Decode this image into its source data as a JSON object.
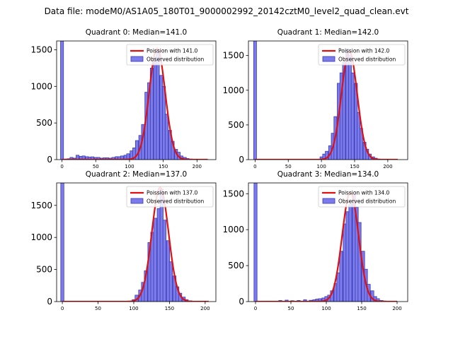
{
  "figure": {
    "suptitle": "Data file: modeM0/AS1A05_180T01_9000002992_20142cztM0_level2_quad_clean.evt",
    "colors": {
      "bar_fill": "#7b7bea",
      "bar_edge": "#3a3ab8",
      "curve": "#e01010"
    }
  },
  "chart_data": [
    {
      "type": "bar",
      "title": "Quadrant 0: Median=141.0",
      "xlim": [
        -8,
        228
      ],
      "ylim": [
        0,
        1620
      ],
      "xticks": [
        0,
        50,
        100,
        150,
        200
      ],
      "yticks": [
        0,
        500,
        1000,
        1500
      ],
      "bin_width": 4.4,
      "spike": {
        "x": 0,
        "value": 1620
      },
      "bins": {
        "centers": [
          6,
          10,
          14,
          19,
          23,
          28,
          32,
          37,
          41,
          45,
          50,
          54,
          59,
          63,
          67,
          72,
          76,
          81,
          85,
          89,
          94,
          98,
          103,
          107,
          111,
          116,
          120,
          125,
          129,
          133,
          138,
          142,
          147,
          151,
          155,
          160,
          164,
          169,
          173,
          177,
          182,
          186,
          191,
          195,
          199,
          204,
          208
        ],
        "values": [
          8,
          12,
          30,
          20,
          60,
          45,
          50,
          40,
          35,
          38,
          30,
          30,
          20,
          25,
          25,
          20,
          30,
          40,
          40,
          50,
          60,
          80,
          120,
          160,
          260,
          330,
          480,
          920,
          1050,
          1250,
          1400,
          1500,
          1150,
          1000,
          620,
          400,
          250,
          140,
          100,
          50,
          30,
          15,
          8,
          5,
          3,
          2,
          2
        ]
      },
      "curve": {
        "label": "Poission with 141.0",
        "mean": 141.0,
        "peak": 1520,
        "x_range": [
          0,
          216
        ]
      },
      "legend": [
        "Poission with 141.0",
        "Observed distribution"
      ],
      "legend_position": "top-right"
    },
    {
      "type": "bar",
      "title": "Quadrant 1: Median=142.0",
      "xlim": [
        -10,
        230
      ],
      "ylim": [
        0,
        1710
      ],
      "xticks": [
        0,
        50,
        100,
        150,
        200
      ],
      "yticks": [
        0,
        500,
        1000,
        1500
      ],
      "bin_width": 4.3,
      "spike": {
        "x": 0,
        "value": 1710
      },
      "bins": {
        "centers": [
          100,
          104,
          108,
          113,
          117,
          121,
          126,
          130,
          134,
          139,
          143,
          147,
          152,
          156,
          160,
          165,
          169,
          173,
          178,
          182,
          186,
          191
        ],
        "values": [
          40,
          80,
          120,
          200,
          380,
          620,
          1100,
          1250,
          1400,
          1600,
          1500,
          1250,
          1100,
          680,
          450,
          250,
          150,
          80,
          40,
          20,
          8,
          4
        ]
      },
      "curve": {
        "label": "Poission with 142.0",
        "mean": 142.0,
        "peak": 1560,
        "x_range": [
          0,
          215
        ]
      },
      "legend": [
        "Poission with 142.0",
        "Observed distribution"
      ],
      "legend_position": "top-right"
    },
    {
      "type": "bar",
      "title": "Quadrant 2: Median=137.0",
      "xlim": [
        -8,
        215
      ],
      "ylim": [
        0,
        1850
      ],
      "xticks": [
        0,
        50,
        100,
        150,
        200
      ],
      "yticks": [
        0,
        500,
        1000,
        1500
      ],
      "bin_width": 4.4,
      "spike": {
        "x": 0,
        "value": 1850
      },
      "bins": {
        "centers": [
          100,
          104,
          109,
          113,
          117,
          122,
          126,
          130,
          135,
          139,
          143,
          148,
          152,
          157,
          161,
          165,
          170,
          174,
          179,
          183
        ],
        "values": [
          30,
          100,
          180,
          300,
          480,
          920,
          1080,
          1300,
          1450,
          1750,
          1270,
          950,
          620,
          400,
          230,
          130,
          70,
          30,
          12,
          6
        ]
      },
      "curve": {
        "label": "Poission with 137.0",
        "mean": 137.0,
        "peak": 1780,
        "x_range": [
          0,
          205
        ]
      },
      "legend": [
        "Poission with 137.0",
        "Observed distribution"
      ],
      "legend_position": "top-right"
    },
    {
      "type": "bar",
      "title": "Quadrant 3: Median=134.0",
      "xlim": [
        -10,
        215
      ],
      "ylim": [
        0,
        1650
      ],
      "xticks": [
        0,
        50,
        100,
        150,
        200
      ],
      "yticks": [
        0,
        500,
        1000,
        1500
      ],
      "bin_width": 4.3,
      "spike": {
        "x": 0,
        "value": 1650
      },
      "bins": {
        "centers": [
          35,
          44,
          52,
          61,
          70,
          78,
          83,
          87,
          91,
          96,
          100,
          104,
          108,
          113,
          117,
          121,
          126,
          130,
          134,
          139,
          143,
          147,
          152,
          156,
          160,
          165,
          169,
          173,
          178,
          182
        ],
        "values": [
          15,
          20,
          12,
          15,
          25,
          18,
          25,
          35,
          40,
          50,
          70,
          90,
          150,
          250,
          400,
          700,
          1080,
          1250,
          1350,
          1490,
          1310,
          1100,
          700,
          450,
          240,
          150,
          70,
          40,
          15,
          8
        ]
      },
      "curve": {
        "label": "Poission with 134.0",
        "mean": 134.0,
        "peak": 1520,
        "x_range": [
          0,
          200
        ]
      },
      "legend": [
        "Poission with 134.0",
        "Observed distribution"
      ],
      "legend_position": "top-right"
    }
  ]
}
